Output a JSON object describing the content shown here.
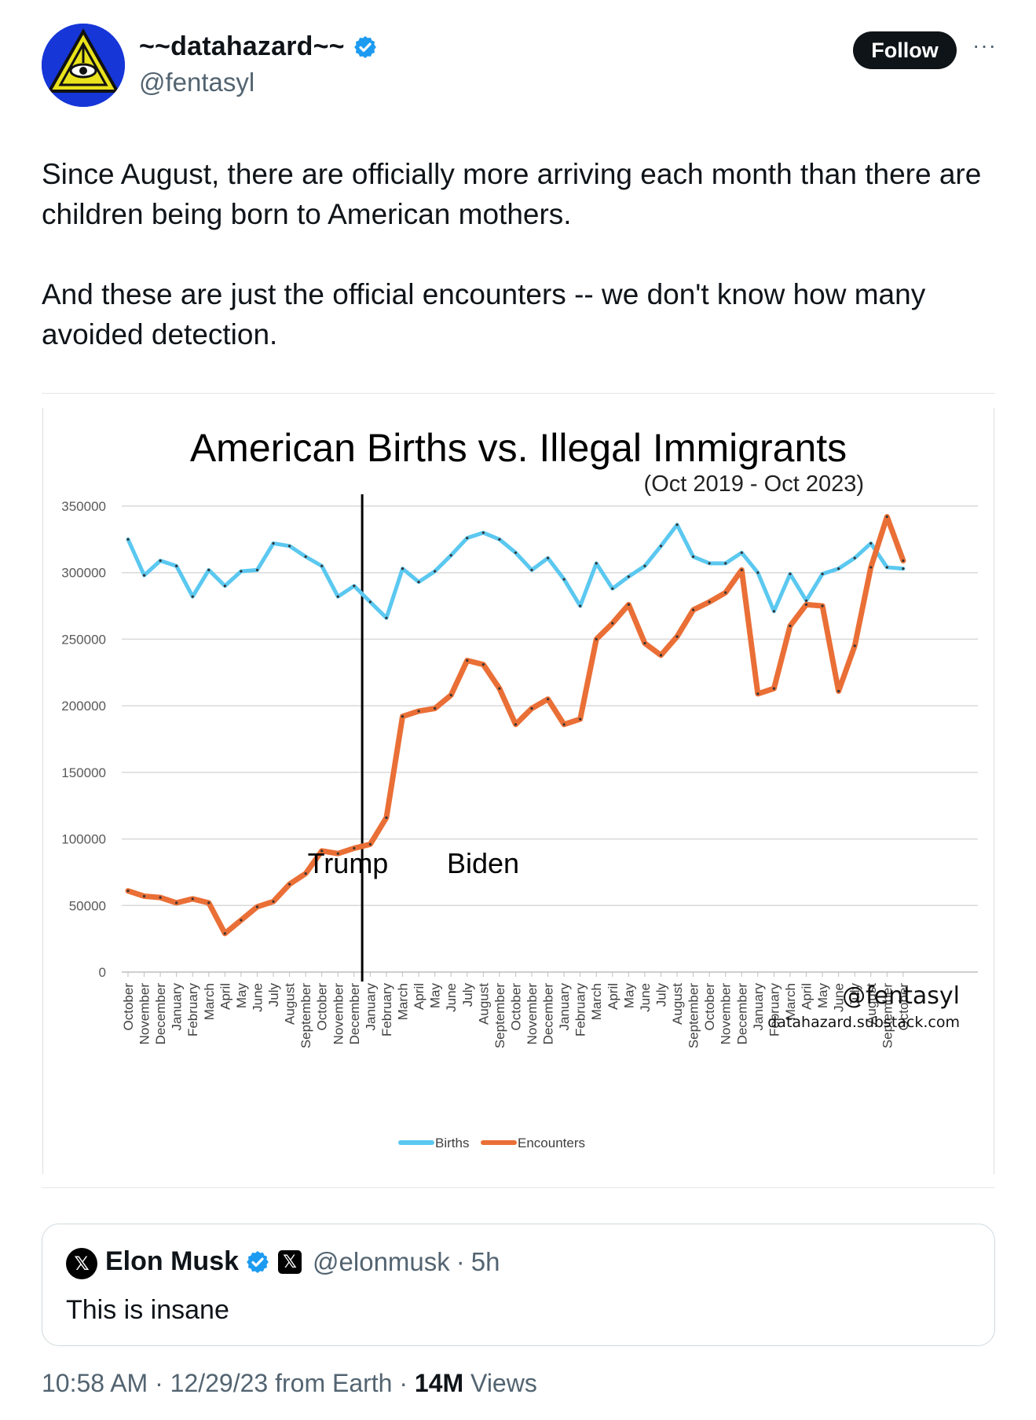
{
  "author": {
    "display_name": "~~datahazard~~",
    "handle": "@fentasyl",
    "verified": true,
    "verified_color": "#1d9bf0"
  },
  "actions": {
    "follow_label": "Follow",
    "more_icon": "ellipsis-icon"
  },
  "tweet": {
    "paragraphs": [
      "Since August, there are officially more arriving each month than there are children being born to American mothers.",
      "And these are just the official encounters -- we don't know how many avoided detection."
    ]
  },
  "quote": {
    "display_name": "Elon Musk",
    "handle": "@elonmusk",
    "separator": "·",
    "time": "5h",
    "text": "This is insane",
    "avatar_glyph": "𝕏",
    "badge_glyph": "𝕏"
  },
  "meta": {
    "time": "10:58 AM",
    "date": "12/29/23",
    "source": "from Earth",
    "views_count": "14M",
    "views_label": "Views"
  },
  "chart_data": {
    "type": "line",
    "title": "American Births vs. Illegal Immigrants",
    "subtitle": "(Oct 2019 - Oct 2023)",
    "xlabel": "",
    "ylabel": "",
    "ylim": [
      0,
      350000
    ],
    "yticks": [
      "0",
      "50000",
      "100000",
      "150000",
      "200000",
      "250000",
      "300000",
      "350000"
    ],
    "grid": true,
    "legend_position": "bottom",
    "categories": [
      "October",
      "November",
      "December",
      "January",
      "February",
      "March",
      "April",
      "May",
      "June",
      "July",
      "August",
      "September",
      "October",
      "November",
      "December",
      "January",
      "February",
      "March",
      "April",
      "May",
      "June",
      "July",
      "August",
      "September",
      "October",
      "November",
      "December",
      "January",
      "February",
      "March",
      "April",
      "May",
      "June",
      "July",
      "August",
      "September",
      "October",
      "November",
      "December",
      "January",
      "February",
      "March",
      "April",
      "May",
      "June",
      "July",
      "August",
      "September",
      "October"
    ],
    "series": [
      {
        "name": "Births",
        "color": "#5bc8f0",
        "values": [
          325000,
          298000,
          309000,
          305000,
          282000,
          302000,
          290000,
          301000,
          302000,
          322000,
          320000,
          312000,
          305000,
          282000,
          290000,
          278000,
          266000,
          303000,
          293000,
          301000,
          313000,
          326000,
          330000,
          325000,
          315000,
          302000,
          311000,
          295000,
          275000,
          307000,
          288000,
          297000,
          305000,
          320000,
          336000,
          312000,
          307000,
          307000,
          315000,
          300000,
          271000,
          299000,
          279000,
          299000,
          303000,
          311000,
          322000,
          304000,
          303000
        ]
      },
      {
        "name": "Encounters",
        "color": "#ea6f36",
        "values": [
          61000,
          57000,
          56000,
          52000,
          55000,
          52000,
          29000,
          39000,
          49000,
          53000,
          66000,
          74000,
          91000,
          89000,
          93000,
          96000,
          116000,
          192000,
          196000,
          198000,
          208000,
          234000,
          231000,
          213000,
          186000,
          198000,
          205000,
          186000,
          190000,
          250000,
          262000,
          276000,
          247000,
          238000,
          252000,
          272000,
          278000,
          285000,
          302000,
          209000,
          213000,
          260000,
          276000,
          275000,
          211000,
          245000,
          304000,
          342000,
          309000
        ]
      }
    ],
    "annotations": [
      {
        "text": "Trump"
      },
      {
        "text": "Biden"
      }
    ],
    "divider_after_category_index": 14,
    "watermark": {
      "handle": "@fentasyl",
      "site": "datahazard.substack.com"
    }
  }
}
